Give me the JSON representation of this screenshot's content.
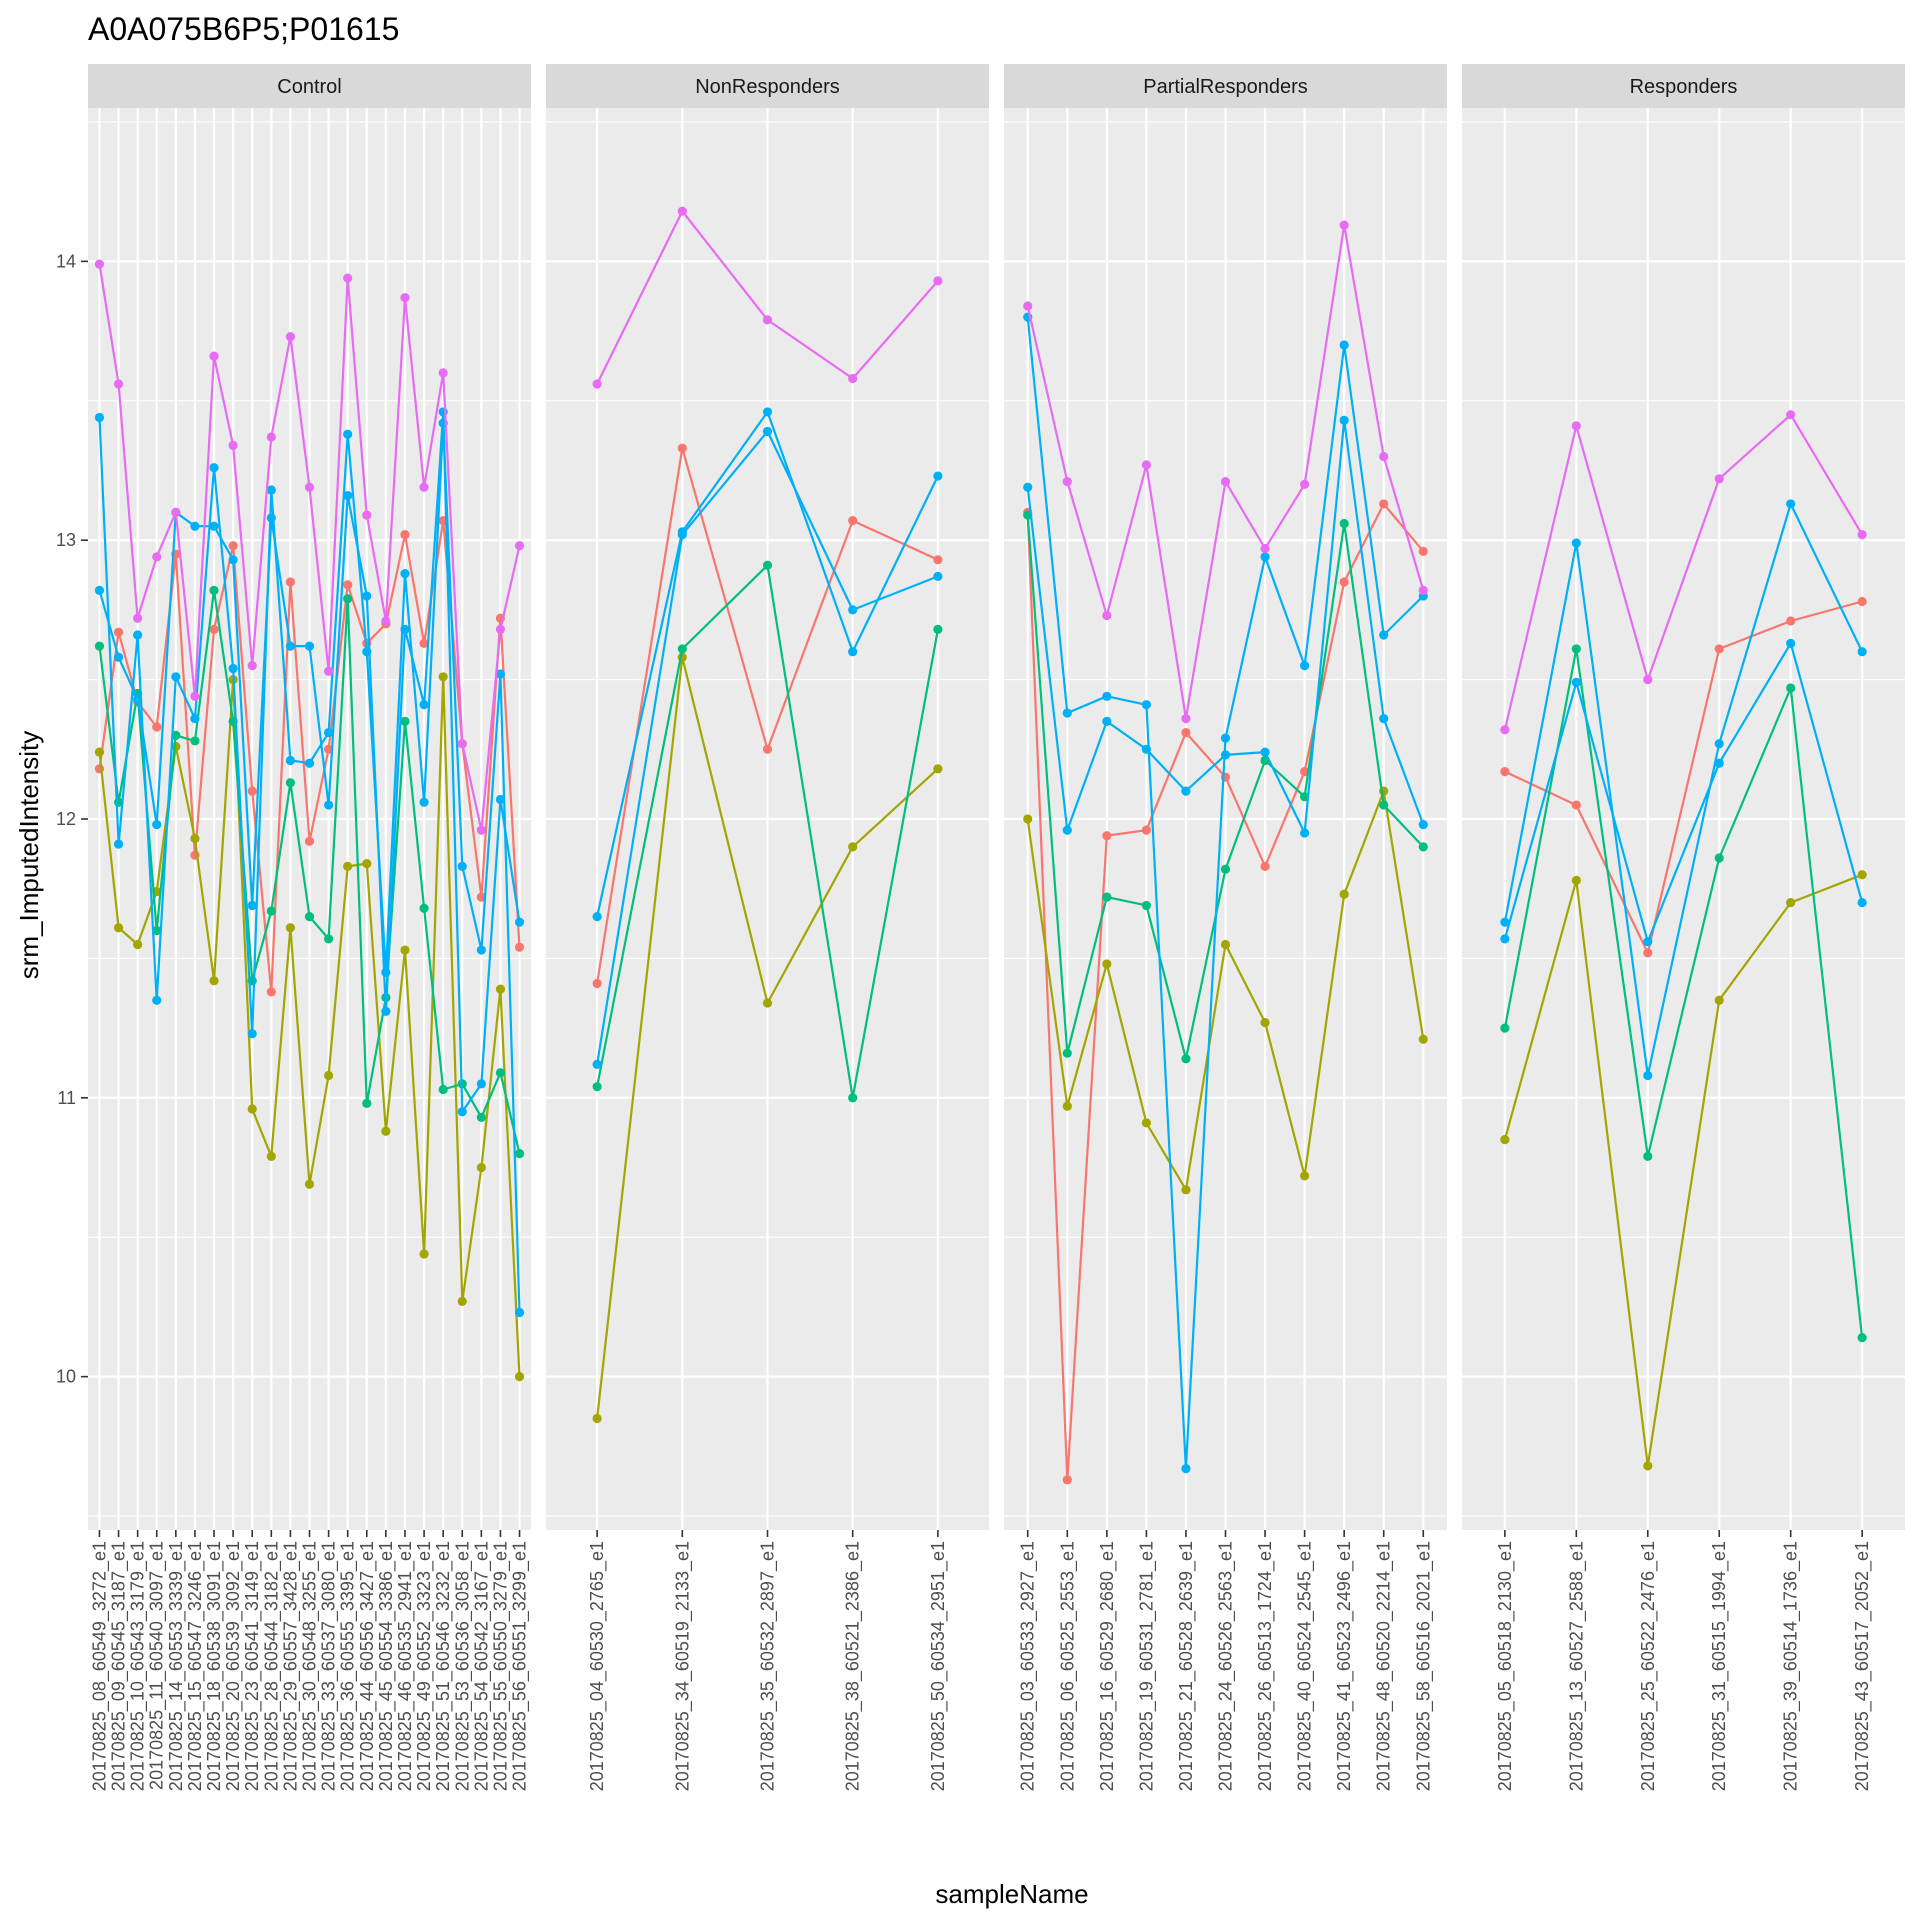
{
  "chart_data": {
    "type": "line",
    "title": "A0A075B6P5;P01615",
    "xlabel": "sampleName",
    "ylabel": "srm_ImputedIntensity",
    "ylim": [
      9.45,
      14.55
    ],
    "yticks": [
      10,
      11,
      12,
      13,
      14
    ],
    "grid": true,
    "legend": "none",
    "series_colors": [
      "#F8766D",
      "#A3A500",
      "#00BF7D",
      "#00B0F6",
      "#00B0F6",
      "#E76BF3"
    ],
    "panels": [
      {
        "name": "Control",
        "categories": [
          "20170825_08_60549_3272_e1",
          "20170825_09_60545_3187_e1",
          "20170825_10_60543_3179_e1",
          "20170825_11_60540_3097_e1",
          "20170825_14_60553_3339_e1",
          "20170825_15_60547_3246_e1",
          "20170825_18_60538_3091_e1",
          "20170825_20_60539_3092_e1",
          "20170825_23_60541_3149_e1",
          "20170825_28_60544_3182_e1",
          "20170825_29_60557_3428_e1",
          "20170825_30_60548_3255_e1",
          "20170825_33_60537_3080_e1",
          "20170825_36_60555_3395_e1",
          "20170825_44_60556_3427_e1",
          "20170825_45_60554_3386_e1",
          "20170825_46_60535_2941_e1",
          "20170825_49_60552_3323_e1",
          "20170825_51_60546_3232_e1",
          "20170825_53_60536_3058_e1",
          "20170825_54_60542_3167_e1",
          "20170825_55_60550_3279_e1",
          "20170825_56_60551_3299_e1"
        ],
        "series": [
          {
            "values": [
              12.18,
              12.67,
              12.42,
              12.33,
              12.95,
              11.87,
              12.68,
              12.98,
              12.1,
              11.38,
              12.85,
              11.92,
              12.25,
              12.84,
              12.63,
              12.7,
              13.02,
              12.63,
              13.07,
              12.27,
              11.72,
              12.72,
              11.54
            ]
          },
          {
            "values": [
              12.24,
              11.61,
              11.55,
              11.74,
              12.26,
              11.93,
              11.42,
              12.5,
              10.96,
              10.79,
              11.61,
              10.69,
              11.08,
              11.83,
              11.84,
              10.88,
              11.53,
              10.44,
              12.51,
              10.27,
              10.75,
              11.39,
              10.0
            ]
          },
          {
            "values": [
              12.62,
              12.06,
              12.45,
              11.6,
              12.3,
              12.28,
              12.82,
              12.35,
              11.42,
              11.67,
              12.13,
              11.65,
              11.57,
              12.79,
              10.98,
              11.36,
              12.35,
              11.68,
              11.03,
              11.05,
              10.93,
              11.09,
              10.8
            ]
          },
          {
            "values": [
              13.44,
              11.91,
              12.66,
              11.35,
              12.51,
              12.36,
              13.26,
              12.54,
              11.23,
              13.18,
              12.21,
              12.2,
              12.31,
              13.38,
              12.6,
              11.45,
              12.88,
              12.06,
              13.42,
              11.83,
              11.53,
              12.52,
              10.23
            ]
          },
          {
            "values": [
              12.82,
              12.58,
              12.43,
              11.98,
              13.1,
              13.05,
              13.05,
              12.93,
              11.69,
              13.08,
              12.62,
              12.62,
              12.05,
              13.16,
              12.8,
              11.31,
              12.68,
              12.41,
              13.46,
              10.95,
              11.05,
              12.07,
              11.63
            ]
          },
          {
            "values": [
              13.99,
              13.56,
              12.72,
              12.94,
              13.1,
              12.44,
              13.66,
              13.34,
              12.55,
              13.37,
              13.73,
              13.19,
              12.53,
              13.94,
              13.09,
              12.71,
              13.87,
              13.19,
              13.6,
              12.27,
              11.96,
              12.68,
              12.98
            ]
          }
        ]
      },
      {
        "name": "NonResponders",
        "categories": [
          "20170825_04_60530_2765_e1",
          "20170825_34_60519_2133_e1",
          "20170825_35_60532_2897_e1",
          "20170825_38_60521_2386_e1",
          "20170825_50_60534_2951_e1"
        ],
        "series": [
          {
            "values": [
              11.41,
              13.33,
              12.25,
              13.07,
              12.93
            ]
          },
          {
            "values": [
              9.85,
              12.58,
              11.34,
              11.9,
              12.18
            ]
          },
          {
            "values": [
              11.04,
              12.61,
              12.91,
              11.0,
              12.68
            ]
          },
          {
            "values": [
              11.65,
              13.03,
              13.46,
              12.6,
              13.23
            ]
          },
          {
            "values": [
              11.12,
              13.02,
              13.39,
              12.75,
              12.87
            ]
          },
          {
            "values": [
              13.56,
              14.18,
              13.79,
              13.58,
              13.93
            ]
          }
        ]
      },
      {
        "name": "PartialResponders",
        "categories": [
          "20170825_03_60533_2927_e1",
          "20170825_06_60525_2553_e1",
          "20170825_16_60529_2680_e1",
          "20170825_19_60531_2781_e1",
          "20170825_21_60528_2639_e1",
          "20170825_24_60526_2563_e1",
          "20170825_26_60513_1724_e1",
          "20170825_40_60524_2545_e1",
          "20170825_41_60523_2496_e1",
          "20170825_48_60520_2214_e1",
          "20170825_58_60516_2021_e1"
        ],
        "series": [
          {
            "values": [
              13.1,
              9.63,
              11.94,
              11.96,
              12.31,
              12.15,
              11.83,
              12.17,
              12.85,
              13.13,
              12.96
            ]
          },
          {
            "values": [
              12.0,
              10.97,
              11.48,
              10.91,
              10.67,
              11.55,
              11.27,
              10.72,
              11.73,
              12.1,
              11.21
            ]
          },
          {
            "values": [
              13.09,
              11.16,
              11.72,
              11.69,
              11.14,
              11.82,
              12.21,
              12.08,
              13.06,
              12.05,
              11.9
            ]
          },
          {
            "values": [
              13.8,
              12.38,
              12.44,
              12.41,
              9.67,
              12.29,
              12.94,
              12.55,
              13.7,
              12.66,
              12.8
            ]
          },
          {
            "values": [
              13.19,
              11.96,
              12.35,
              12.25,
              12.1,
              12.23,
              12.24,
              11.95,
              13.43,
              12.36,
              11.98
            ]
          },
          {
            "values": [
              13.84,
              13.21,
              12.73,
              13.27,
              12.36,
              13.21,
              12.97,
              13.2,
              14.13,
              13.3,
              12.82
            ]
          }
        ]
      },
      {
        "name": "Responders",
        "categories": [
          "20170825_05_60518_2130_e1",
          "20170825_13_60527_2588_e1",
          "20170825_25_60522_2476_e1",
          "20170825_31_60515_1994_e1",
          "20170825_39_60514_1736_e1",
          "20170825_43_60517_2052_e1"
        ],
        "series": [
          {
            "values": [
              12.17,
              12.05,
              11.52,
              12.61,
              12.71,
              12.78
            ]
          },
          {
            "values": [
              10.85,
              11.78,
              9.68,
              11.35,
              11.7,
              11.8
            ]
          },
          {
            "values": [
              11.25,
              12.61,
              10.79,
              11.86,
              12.47,
              10.14
            ]
          },
          {
            "values": [
              11.63,
              12.99,
              11.08,
              12.27,
              13.13,
              12.6
            ]
          },
          {
            "values": [
              11.57,
              12.49,
              11.56,
              12.2,
              12.63,
              11.7
            ]
          },
          {
            "values": [
              12.32,
              13.41,
              12.5,
              13.22,
              13.45,
              13.02
            ]
          }
        ]
      }
    ]
  }
}
